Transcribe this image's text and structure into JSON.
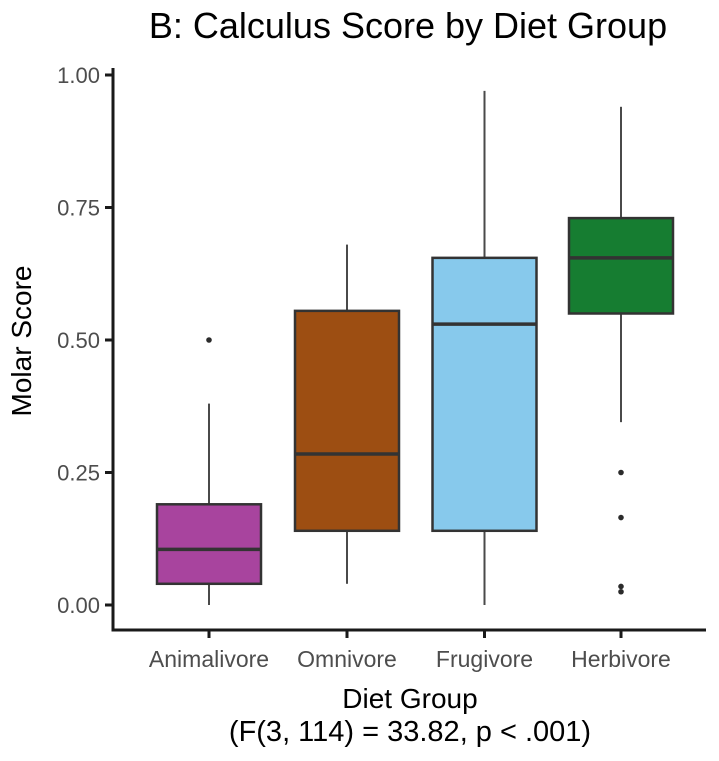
{
  "title": "B: Calculus Score by Diet Group",
  "subtitle": "(F(3, 114) = 33.82, p < .001)",
  "y_axis": {
    "label": "Molar Score",
    "ticks": [
      "0.00",
      "0.25",
      "0.50",
      "0.75",
      "1.00"
    ]
  },
  "x_axis": {
    "label": "Diet Group",
    "categories": [
      "Animalivore",
      "Omnivore",
      "Frugivore",
      "Herbivore"
    ]
  },
  "colors": {
    "axis_line": "#1a1a1a",
    "tick_label": "#4d4d4d",
    "box_border": "#333333",
    "whisker": "#4a4a4a",
    "outlier": "#2b2b2b",
    "title_text": "#000000"
  },
  "chart_data": {
    "type": "boxplot",
    "title": "B: Calculus Score by Diet Group",
    "xlabel": "Diet Group",
    "ylabel": "Molar Score",
    "annotation": "(F(3, 114) = 33.82, p < .001)",
    "ylim": [
      0,
      1
    ],
    "yticks": [
      0,
      0.25,
      0.5,
      0.75,
      1.0
    ],
    "ytick_labels": [
      "0.00",
      "0.25",
      "0.50",
      "0.75",
      "1.00"
    ],
    "grid": false,
    "legend": "none",
    "categories": [
      "Animalivore",
      "Omnivore",
      "Frugivore",
      "Herbivore"
    ],
    "series": [
      {
        "name": "Animalivore",
        "whisker_low": 0.0,
        "q1": 0.04,
        "median": 0.105,
        "q3": 0.19,
        "whisker_high": 0.38,
        "outliers": [
          0.5
        ],
        "fill": "#a8449e"
      },
      {
        "name": "Omnivore",
        "whisker_low": 0.04,
        "q1": 0.14,
        "median": 0.285,
        "q3": 0.555,
        "whisker_high": 0.68,
        "outliers": [],
        "fill": "#9d4e12"
      },
      {
        "name": "Frugivore",
        "whisker_low": 0.0,
        "q1": 0.14,
        "median": 0.53,
        "q3": 0.655,
        "whisker_high": 0.97,
        "outliers": [],
        "fill": "#87c9ec"
      },
      {
        "name": "Herbivore",
        "whisker_low": 0.345,
        "q1": 0.55,
        "median": 0.655,
        "q3": 0.73,
        "whisker_high": 0.94,
        "outliers": [
          0.25,
          0.165,
          0.035,
          0.025
        ],
        "fill": "#167d31"
      }
    ]
  }
}
